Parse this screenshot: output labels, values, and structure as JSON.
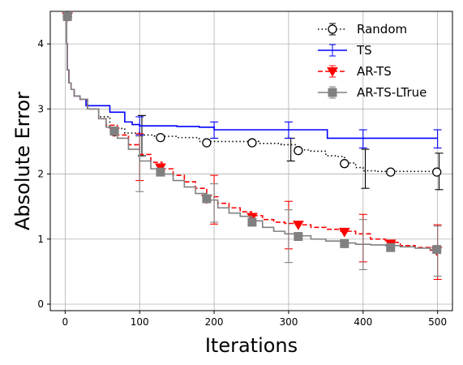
{
  "chart_data": {
    "type": "line",
    "title": "",
    "xlabel": "Iterations",
    "ylabel": "Absolute Error",
    "xlim": [
      -20,
      520
    ],
    "ylim": [
      -0.1,
      4.5
    ],
    "xticks": [
      0,
      100,
      200,
      300,
      400,
      500
    ],
    "yticks": [
      0,
      1,
      2,
      3,
      4
    ],
    "grid": true,
    "legend": "top-right",
    "series": [
      {
        "name": "Random",
        "color": "#000000",
        "linestyle": "dotted",
        "marker": "open-circle",
        "x": [
          0,
          2,
          3,
          5,
          8,
          12,
          20,
          30,
          45,
          60,
          80,
          100,
          120,
          150,
          180,
          200,
          230,
          260,
          290,
          310,
          330,
          350,
          365,
          375,
          390,
          400,
          420,
          450,
          480,
          500
        ],
        "y": [
          4.42,
          4.0,
          3.6,
          3.4,
          3.3,
          3.2,
          3.15,
          3.0,
          2.88,
          2.7,
          2.63,
          2.6,
          2.58,
          2.56,
          2.5,
          2.5,
          2.5,
          2.47,
          2.45,
          2.37,
          2.35,
          2.28,
          2.27,
          2.17,
          2.1,
          2.05,
          2.04,
          2.04,
          2.04,
          2.04
        ],
        "markers_x": [
          3,
          66,
          128,
          190,
          251,
          313,
          375,
          437,
          499
        ],
        "markers_y": [
          4.42,
          2.65,
          2.56,
          2.48,
          2.48,
          2.36,
          2.16,
          2.03,
          2.03
        ],
        "errorbars": [
          {
            "x": 103,
            "y": 2.6,
            "lo": 2.28,
            "hi": 2.9
          },
          {
            "x": 303,
            "y": 2.37,
            "lo": 2.2,
            "hi": 2.55
          },
          {
            "x": 403,
            "y": 2.08,
            "lo": 1.78,
            "hi": 2.38
          },
          {
            "x": 502,
            "y": 2.04,
            "lo": 1.76,
            "hi": 2.32
          }
        ]
      },
      {
        "name": "TS",
        "color": "#0000ff",
        "linestyle": "solid",
        "marker": "none",
        "x": [
          0,
          2,
          3,
          5,
          8,
          12,
          20,
          28,
          45,
          60,
          68,
          80,
          90,
          100,
          120,
          140,
          150,
          180,
          200,
          230,
          260,
          300,
          330,
          350,
          352,
          365,
          400,
          450,
          500
        ],
        "y": [
          4.42,
          4.0,
          3.6,
          3.4,
          3.3,
          3.2,
          3.15,
          3.05,
          3.05,
          2.95,
          2.95,
          2.8,
          2.76,
          2.74,
          2.74,
          2.74,
          2.73,
          2.72,
          2.68,
          2.68,
          2.68,
          2.68,
          2.68,
          2.68,
          2.55,
          2.55,
          2.55,
          2.55,
          2.55
        ],
        "markers_x": [],
        "markers_y": [],
        "errorbars": [
          {
            "x": 100,
            "y": 2.74,
            "lo": 2.6,
            "hi": 2.88
          },
          {
            "x": 200,
            "y": 2.68,
            "lo": 2.55,
            "hi": 2.8
          },
          {
            "x": 300,
            "y": 2.68,
            "lo": 2.55,
            "hi": 2.8
          },
          {
            "x": 400,
            "y": 2.55,
            "lo": 2.4,
            "hi": 2.68
          },
          {
            "x": 500,
            "y": 2.55,
            "lo": 2.4,
            "hi": 2.68
          }
        ]
      },
      {
        "name": "AR-TS",
        "color": "#ff0000",
        "linestyle": "dashed",
        "marker": "triangle-down",
        "x": [
          0,
          2,
          3,
          5,
          8,
          12,
          20,
          30,
          45,
          55,
          70,
          85,
          100,
          115,
          130,
          145,
          160,
          175,
          190,
          205,
          220,
          235,
          250,
          265,
          280,
          295,
          310,
          330,
          350,
          370,
          390,
          410,
          430,
          450,
          470,
          490,
          500
        ],
        "y": [
          4.42,
          4.0,
          3.6,
          3.4,
          3.3,
          3.2,
          3.15,
          3.0,
          2.85,
          2.75,
          2.6,
          2.45,
          2.3,
          2.18,
          2.08,
          1.98,
          1.88,
          1.78,
          1.65,
          1.55,
          1.48,
          1.42,
          1.36,
          1.3,
          1.26,
          1.24,
          1.22,
          1.18,
          1.15,
          1.12,
          1.08,
          1.0,
          0.95,
          0.9,
          0.87,
          0.83,
          0.8
        ],
        "markers_x": [
          3,
          66,
          128,
          190,
          251,
          313,
          375,
          437,
          499
        ],
        "markers_y": [
          4.42,
          2.65,
          2.1,
          1.62,
          1.34,
          1.22,
          1.11,
          0.93,
          0.82
        ],
        "errorbars": [
          {
            "x": 100,
            "y": 2.28,
            "lo": 1.9,
            "hi": 2.62
          },
          {
            "x": 200,
            "y": 1.6,
            "lo": 1.23,
            "hi": 1.98
          },
          {
            "x": 300,
            "y": 1.22,
            "lo": 0.85,
            "hi": 1.58
          },
          {
            "x": 400,
            "y": 1.0,
            "lo": 0.65,
            "hi": 1.38
          },
          {
            "x": 500,
            "y": 0.8,
            "lo": 0.38,
            "hi": 1.22
          }
        ]
      },
      {
        "name": "AR-TS-LTrue",
        "color": "#808080",
        "linestyle": "solid",
        "marker": "square",
        "x": [
          0,
          2,
          3,
          5,
          8,
          12,
          20,
          30,
          45,
          55,
          70,
          85,
          100,
          115,
          130,
          145,
          160,
          175,
          190,
          205,
          220,
          235,
          250,
          265,
          280,
          295,
          310,
          330,
          350,
          370,
          390,
          410,
          430,
          450,
          470,
          490,
          500
        ],
        "y": [
          4.42,
          4.0,
          3.6,
          3.4,
          3.3,
          3.2,
          3.15,
          3.0,
          2.85,
          2.72,
          2.55,
          2.38,
          2.2,
          2.08,
          2.0,
          1.9,
          1.8,
          1.7,
          1.6,
          1.48,
          1.4,
          1.35,
          1.28,
          1.18,
          1.12,
          1.08,
          1.05,
          1.0,
          0.97,
          0.94,
          0.92,
          0.91,
          0.9,
          0.88,
          0.86,
          0.84,
          0.82
        ],
        "markers_x": [
          3,
          66,
          128,
          190,
          251,
          313,
          375,
          437,
          499
        ],
        "markers_y": [
          4.42,
          2.66,
          2.03,
          1.62,
          1.26,
          1.04,
          0.93,
          0.87,
          0.84
        ],
        "errorbars": [
          {
            "x": 100,
            "y": 2.2,
            "lo": 1.73,
            "hi": 2.58
          },
          {
            "x": 200,
            "y": 1.55,
            "lo": 1.26,
            "hi": 1.85
          },
          {
            "x": 300,
            "y": 1.07,
            "lo": 0.64,
            "hi": 1.45
          },
          {
            "x": 400,
            "y": 0.91,
            "lo": 0.53,
            "hi": 1.3
          },
          {
            "x": 500,
            "y": 0.82,
            "lo": 0.43,
            "hi": 1.2
          }
        ]
      }
    ]
  }
}
